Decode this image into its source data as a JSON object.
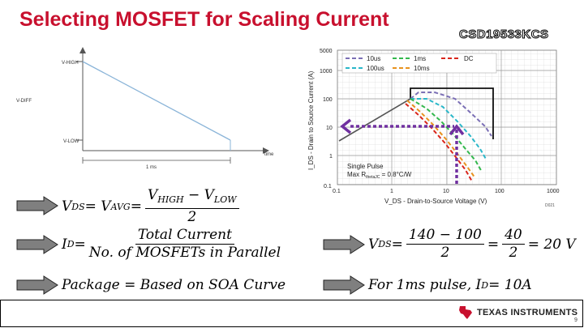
{
  "slide": {
    "title": "Selecting MOSFET for Scaling Current",
    "part_number": "CSD19533KCS",
    "page_number": "9"
  },
  "waveform": {
    "v_high": "V-HIGH",
    "v_diff": "V-DIFF",
    "v_low": "V-LOW",
    "time_label": "time",
    "duration": "1 ms"
  },
  "soa_chart": {
    "ylabel": "I_DS - Drain to Source Current (A)",
    "ylabel_sub": "DS",
    "xlabel": "V_DS - Drain-to-Source Voltage (V)",
    "y_ticks": [
      "0.1",
      "1",
      "10",
      "100",
      "1000",
      "5000"
    ],
    "x_ticks": [
      "0.1",
      "1",
      "10",
      "100",
      "1000"
    ],
    "legend": [
      {
        "label": "10us",
        "color": "#7b6fb5"
      },
      {
        "label": "100us",
        "color": "#2ab7c9"
      },
      {
        "label": "1ms",
        "color": "#33b84d"
      },
      {
        "label": "10ms",
        "color": "#e8921e"
      },
      {
        "label": "DC",
        "color": "#d9261c"
      }
    ],
    "annotation_line1": "Single Pulse",
    "annotation_line2": "Max R",
    "annotation_sub": "thetaJC",
    "annotation_value": " = 0.8°C/W",
    "footnote": "D021"
  },
  "equations": {
    "vds_def": {
      "lhs": "V",
      "lhs_sub": "DS",
      "eq1": " = V",
      "avg_sub": "AVG",
      "eq2": " = ",
      "num": "V",
      "num_sub1": "HIGH",
      "num_mid": " − V",
      "num_sub2": "LOW",
      "den": "2"
    },
    "id_def": {
      "lhs": "I",
      "lhs_sub": "D",
      "eq": " = ",
      "num": "Total Current",
      "den": "No. of MOSFETs in Parallel"
    },
    "package": {
      "text": "Package = Based on SOA Curve"
    },
    "vds_calc": {
      "lhs": "V",
      "lhs_sub": "DS",
      "eq": " = ",
      "num1": "140 − 100",
      "den1": "2",
      "eq2": " = ",
      "num2": "40",
      "den2": "2",
      "result": " = 20 V"
    },
    "id_calc": {
      "text": "For 1ms pulse, I",
      "sub": "D",
      "result": " = 10A"
    }
  },
  "footer": {
    "company": "TEXAS INSTRUMENTS"
  },
  "colors": {
    "title": "#c8102e",
    "arrow": "#7f7f7f",
    "guide": "#7030a0"
  }
}
